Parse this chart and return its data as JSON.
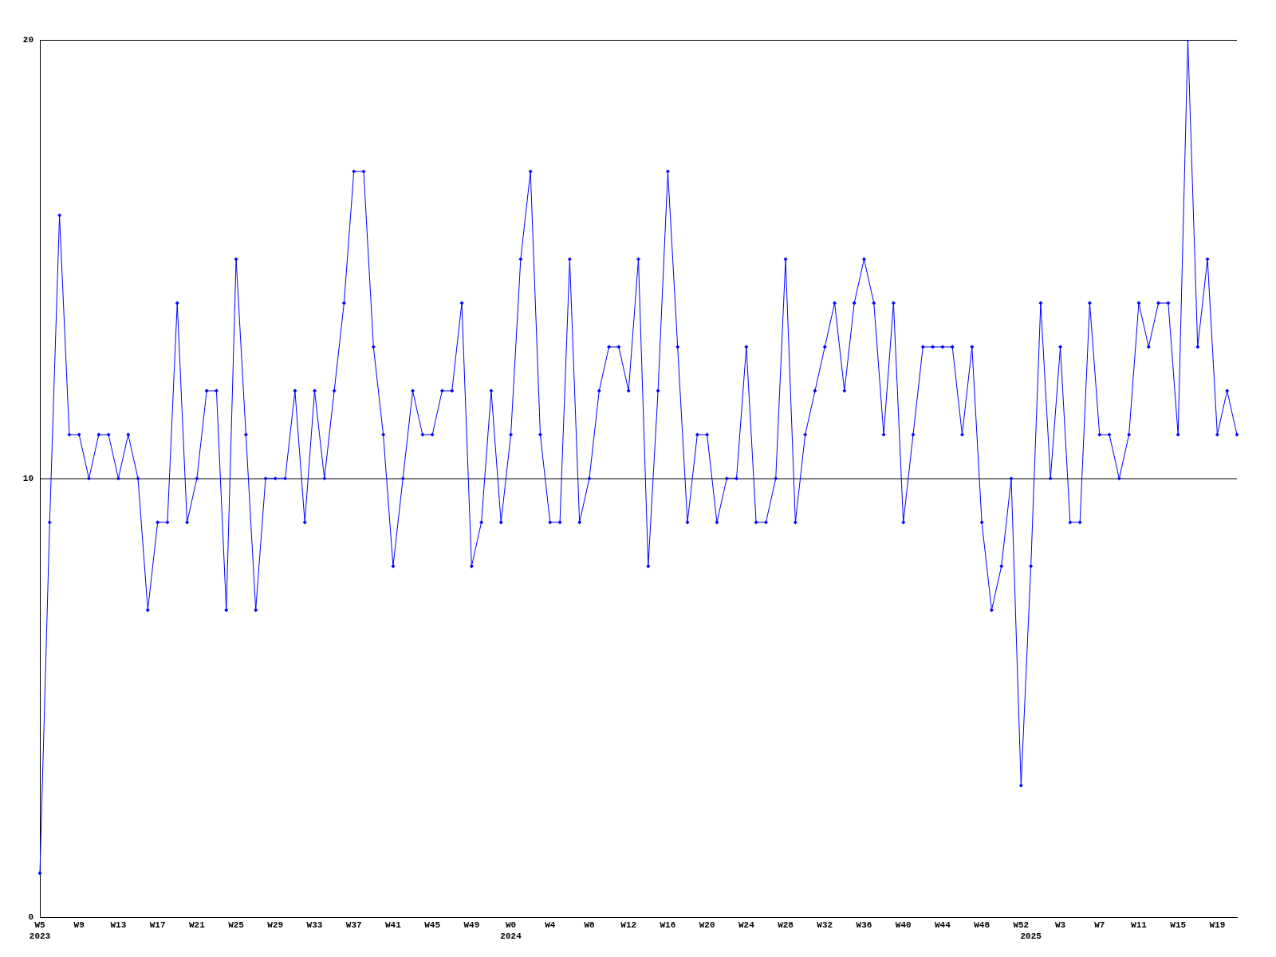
{
  "chart_data": {
    "type": "line",
    "categories": [
      "W5\n2023",
      null,
      null,
      null,
      "W9",
      null,
      null,
      null,
      "W13",
      null,
      null,
      null,
      "W17",
      null,
      null,
      null,
      "W21",
      null,
      null,
      null,
      "W25",
      null,
      null,
      null,
      "W29",
      null,
      null,
      null,
      "W33",
      null,
      null,
      null,
      "W37",
      null,
      null,
      null,
      "W41",
      null,
      null,
      null,
      "W45",
      null,
      null,
      null,
      "W49",
      null,
      null,
      null,
      "W0\n2024",
      null,
      null,
      null,
      "W4",
      null,
      null,
      null,
      "W8",
      null,
      null,
      null,
      "W12",
      null,
      null,
      null,
      "W16",
      null,
      null,
      null,
      "W20",
      null,
      null,
      null,
      "W24",
      null,
      null,
      null,
      "W28",
      null,
      null,
      null,
      "W32",
      null,
      null,
      null,
      "W36",
      null,
      null,
      null,
      "W40",
      null,
      null,
      null,
      "W44",
      null,
      null,
      null,
      "W48",
      null,
      null,
      null,
      "W52",
      "\n2025",
      null,
      null,
      "W3",
      null,
      null,
      null,
      "W7",
      null,
      null,
      null,
      "W11",
      null,
      null,
      null,
      "W15",
      null,
      null,
      null,
      "W19",
      null,
      null
    ],
    "series": [
      {
        "color": "#0000ff",
        "values": [
          1,
          9,
          16,
          11,
          11,
          10,
          11,
          11,
          10,
          11,
          10,
          7,
          9,
          9,
          14,
          9,
          10,
          12,
          12,
          7,
          15,
          11,
          7,
          10,
          10,
          10,
          12,
          9,
          12,
          10,
          12,
          14,
          17,
          17,
          13,
          11,
          8,
          10,
          12,
          11,
          11,
          12,
          12,
          14,
          8,
          9,
          12,
          9,
          11,
          15,
          17,
          11,
          9,
          9,
          15,
          9,
          10,
          12,
          13,
          13,
          12,
          15,
          8,
          12,
          17,
          13,
          9,
          11,
          11,
          9,
          10,
          10,
          13,
          9,
          9,
          10,
          15,
          9,
          11,
          12,
          13,
          14,
          12,
          14,
          15,
          14,
          11,
          14,
          9,
          11,
          13,
          13,
          13,
          13,
          11,
          13,
          9,
          7,
          8,
          10,
          3,
          8,
          14,
          10,
          13,
          9,
          9,
          14,
          11,
          11,
          10,
          11,
          14,
          13,
          14,
          14,
          11,
          20,
          13,
          15,
          11,
          12,
          11
        ]
      }
    ],
    "ylim": [
      0,
      20
    ],
    "yticks": [
      0,
      10,
      20
    ],
    "grid": "y",
    "legend": false,
    "marker": "diamond",
    "line_style": "solid"
  }
}
